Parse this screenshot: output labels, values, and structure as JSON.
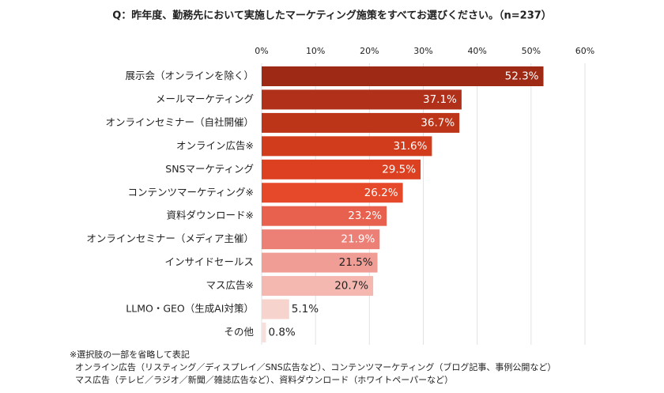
{
  "chart_data": {
    "type": "bar",
    "orientation": "horizontal",
    "title": "Q：昨年度、勤務先において実施したマーケティング施策をすべてお選びください。（n=237）",
    "categories": [
      "展示会（オンラインを除く）",
      "メールマーケティング",
      "オンラインセミナー（自社開催）",
      "オンライン広告※",
      "SNSマーケティング",
      "コンテンツマーケティング※",
      "資料ダウンロード※",
      "オンラインセミナー（メディア主催）",
      "インサイドセールス",
      "マス広告※",
      "LLMO・GEO（生成AI対策）",
      "その他"
    ],
    "values": [
      52.3,
      37.1,
      36.7,
      31.6,
      29.5,
      26.2,
      23.2,
      21.9,
      21.5,
      20.7,
      5.1,
      0.8
    ],
    "value_labels": [
      "52.3%",
      "37.1%",
      "36.7%",
      "31.6%",
      "29.5%",
      "26.2%",
      "23.2%",
      "21.9%",
      "21.5%",
      "20.7%",
      "5.1%",
      "0.8%"
    ],
    "colors": [
      "#9e2a16",
      "#b0301a",
      "#bd3519",
      "#d13c1c",
      "#dc4020",
      "#e5492a",
      "#e8604e",
      "#ec7f76",
      "#f09d96",
      "#f4b8b1",
      "#f7d3cd",
      "#f8dfdc"
    ],
    "xlim": [
      0,
      60
    ],
    "xticks": [
      {
        "value": 0,
        "label": "0%"
      },
      {
        "value": 10,
        "label": "10%"
      },
      {
        "value": 20,
        "label": "20%"
      },
      {
        "value": 30,
        "label": "30%"
      },
      {
        "value": 40,
        "label": "40%"
      },
      {
        "value": 50,
        "label": "50%"
      },
      {
        "value": 60,
        "label": "60%"
      }
    ],
    "grid": true,
    "notes": [
      "※選択肢の一部を省略して表記",
      "オンライン広告（リスティング／ディスプレイ／SNS広告など）、コンテンツマーケティング（ブログ記事、事例公開など）",
      "マス広告（テレビ／ラジオ／新聞／雑誌広告など）、資料ダウンロード（ホワイトペーパーなど）"
    ]
  }
}
